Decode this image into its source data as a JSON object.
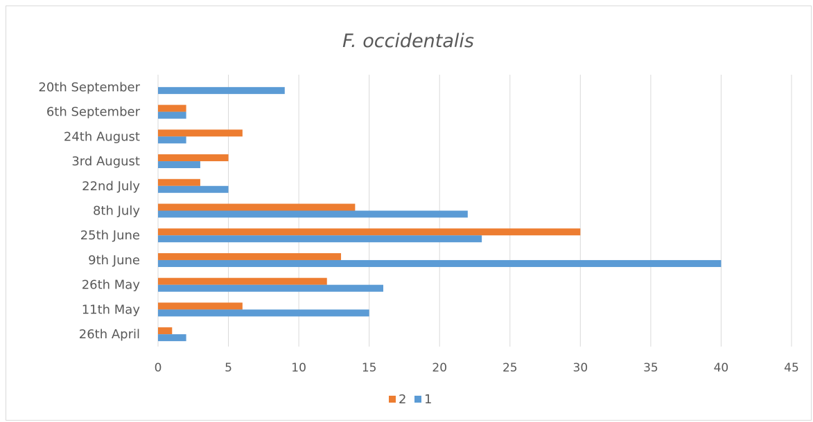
{
  "chart_data": {
    "type": "bar",
    "orientation": "horizontal",
    "title": "F. occidentalis",
    "xlabel": "",
    "ylabel": "",
    "categories": [
      "26th April",
      "11th May",
      "26th May",
      "9th June",
      "25th June",
      "8th July",
      "22nd July",
      "3rd August",
      "24th August",
      "6th September",
      "20th September"
    ],
    "series": [
      {
        "name": "1",
        "color": "#5b9bd5",
        "values": [
          2,
          15,
          16,
          40,
          23,
          22,
          5,
          3,
          2,
          2,
          9
        ]
      },
      {
        "name": "2",
        "color": "#ed7d31",
        "values": [
          1,
          6,
          12,
          13,
          30,
          14,
          3,
          5,
          6,
          2,
          0
        ]
      }
    ],
    "xlim": [
      0,
      45
    ],
    "xticks": [
      "0",
      "5",
      "10",
      "15",
      "20",
      "25",
      "30",
      "35",
      "40",
      "45"
    ],
    "grid": "vertical",
    "legend": {
      "position": "bottom",
      "order": [
        "2",
        "1"
      ]
    }
  }
}
